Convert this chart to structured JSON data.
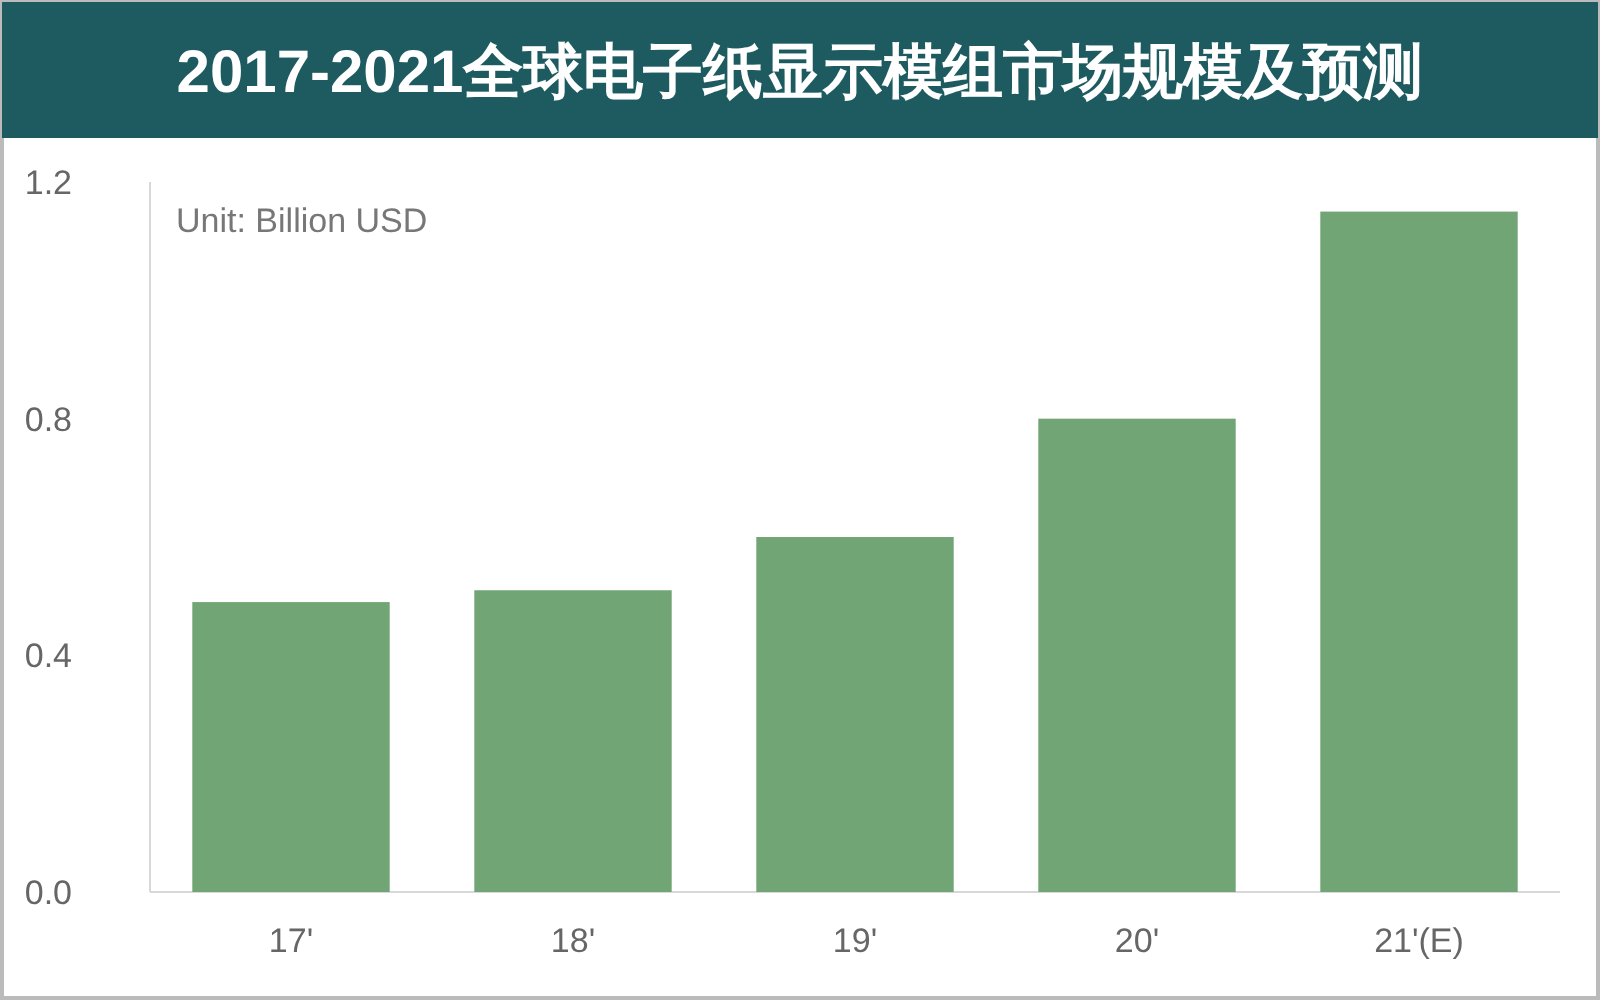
{
  "chart_data": {
    "type": "bar",
    "title": "2017-2021全球电子纸显示模组市场规模及预测",
    "annotations": [
      "Unit: Billion USD"
    ],
    "categories": [
      "17'",
      "18'",
      "19'",
      "20'",
      "21'(E)"
    ],
    "values": [
      0.49,
      0.51,
      0.6,
      0.8,
      1.15
    ],
    "color": "#72a575",
    "ylim": [
      0,
      1.2
    ],
    "yticks": [
      {
        "value": 0,
        "label": "0.0"
      },
      {
        "value": 0.4,
        "label": "0.4"
      },
      {
        "value": 0.8,
        "label": "0.8"
      },
      {
        "value": 1.2,
        "label": "1.2"
      }
    ],
    "grid": false,
    "legend": false
  }
}
